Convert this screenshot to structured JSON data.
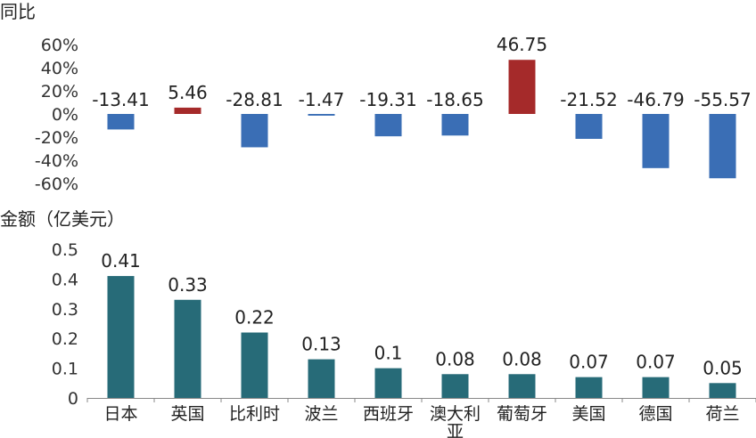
{
  "colors": {
    "positive": "#A52A2A",
    "negative": "#3A6EB5",
    "amount": "#276B78",
    "axis": "#888888"
  },
  "chart_data": [
    {
      "type": "bar",
      "title": "同比",
      "categories": [
        "日本",
        "英国",
        "比利时",
        "波兰",
        "西班牙",
        "澳大利亚",
        "葡萄牙",
        "美国",
        "德国",
        "荷兰"
      ],
      "values": [
        -13.41,
        5.46,
        -28.81,
        -1.47,
        -19.31,
        -18.65,
        46.75,
        -21.52,
        -46.79,
        -55.57
      ],
      "value_labels": [
        "-13.41",
        "5.46",
        "-28.81",
        "-1.47",
        "-19.31",
        "-18.65",
        "46.75",
        "-21.52",
        "-46.79",
        "-55.57"
      ],
      "unit": "%",
      "ylim": [
        -60,
        60
      ],
      "yticks": [
        "60%",
        "40%",
        "20%",
        "0%",
        "-20%",
        "-40%",
        "-60%"
      ],
      "ytick_values": [
        60,
        40,
        20,
        0,
        -20,
        -40,
        -60
      ],
      "grid": false
    },
    {
      "type": "bar",
      "title": "金额（亿美元）",
      "categories": [
        "日本",
        "英国",
        "比利时",
        "波兰",
        "西班牙",
        "澳大利亚",
        "葡萄牙",
        "美国",
        "德国",
        "荷兰"
      ],
      "values": [
        0.41,
        0.33,
        0.22,
        0.13,
        0.1,
        0.08,
        0.08,
        0.07,
        0.07,
        0.05
      ],
      "value_labels": [
        "0.41",
        "0.33",
        "0.22",
        "0.13",
        "0.1",
        "0.08",
        "0.08",
        "0.07",
        "0.07",
        "0.05"
      ],
      "ylim": [
        0,
        0.5
      ],
      "yticks": [
        "0.5",
        "0.4",
        "0.3",
        "0.2",
        "0.1",
        "0"
      ],
      "ytick_values": [
        0.5,
        0.4,
        0.3,
        0.2,
        0.1,
        0
      ],
      "grid": false
    }
  ]
}
